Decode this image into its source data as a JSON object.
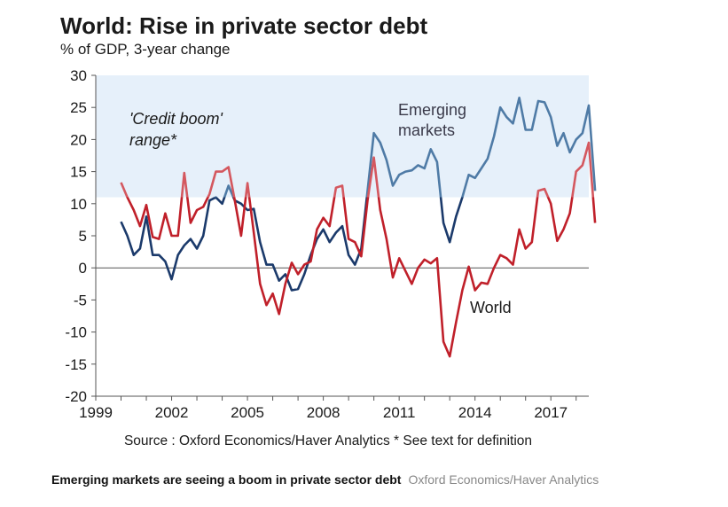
{
  "title": "World: Rise in private sector debt",
  "subtitle": "% of GDP, 3-year change",
  "source": "Source : Oxford Economics/Haver Analytics * See text for definition",
  "caption": {
    "text": "Emerging markets are seeing a boom in private sector debt",
    "credit": "Oxford Economics/Haver Analytics"
  },
  "chart_data": {
    "type": "line",
    "title": "World: Rise in private sector debt",
    "subtitle": "% of GDP, 3-year change",
    "xlim": [
      1999,
      2018.5
    ],
    "ylim": [
      -20,
      30
    ],
    "x_ticks": [
      "1999",
      "2002",
      "2005",
      "2008",
      "2011",
      "2014",
      "2017"
    ],
    "y_ticks": [
      "30",
      "25",
      "20",
      "15",
      "10",
      "5",
      "0",
      "-5",
      "-10",
      "-15",
      "-20"
    ],
    "grid": false,
    "shaded_band": {
      "label_line1": "'Credit boom'",
      "label_line2": "range*",
      "y_from": 11,
      "y_to": 30,
      "color": "#e6f0fa"
    },
    "series": [
      {
        "name": "Emerging markets",
        "label_line1": "Emerging",
        "label_line2": "markets",
        "color_in_band": "#4f7ba6",
        "color_outside_band": "#1b3a6b",
        "label_color": "#3a3a4a",
        "points": [
          [
            2000.0,
            7.2
          ],
          [
            2000.25,
            5.0
          ],
          [
            2000.5,
            2.0
          ],
          [
            2000.75,
            3.0
          ],
          [
            2001.0,
            8.0
          ],
          [
            2001.25,
            2.0
          ],
          [
            2001.5,
            2.0
          ],
          [
            2001.75,
            1.0
          ],
          [
            2002.0,
            -1.8
          ],
          [
            2002.25,
            2.0
          ],
          [
            2002.5,
            3.5
          ],
          [
            2002.75,
            4.5
          ],
          [
            2003.0,
            3.0
          ],
          [
            2003.25,
            5.0
          ],
          [
            2003.5,
            10.5
          ],
          [
            2003.75,
            11.0
          ],
          [
            2004.0,
            10.0
          ],
          [
            2004.25,
            12.8
          ],
          [
            2004.5,
            10.5
          ],
          [
            2004.75,
            10.0
          ],
          [
            2005.0,
            9.0
          ],
          [
            2005.25,
            9.2
          ],
          [
            2005.5,
            4.0
          ],
          [
            2005.75,
            0.5
          ],
          [
            2006.0,
            0.5
          ],
          [
            2006.25,
            -2.0
          ],
          [
            2006.5,
            -1.0
          ],
          [
            2006.75,
            -3.5
          ],
          [
            2007.0,
            -3.3
          ],
          [
            2007.25,
            -1.0
          ],
          [
            2007.5,
            2.0
          ],
          [
            2007.75,
            4.5
          ],
          [
            2008.0,
            6.0
          ],
          [
            2008.25,
            4.0
          ],
          [
            2008.5,
            5.5
          ],
          [
            2008.75,
            6.5
          ],
          [
            2009.0,
            2.0
          ],
          [
            2009.25,
            0.5
          ],
          [
            2009.5,
            3.0
          ],
          [
            2009.75,
            12.0
          ],
          [
            2010.0,
            21.0
          ],
          [
            2010.25,
            19.5
          ],
          [
            2010.5,
            16.8
          ],
          [
            2010.75,
            12.8
          ],
          [
            2011.0,
            14.5
          ],
          [
            2011.25,
            15.0
          ],
          [
            2011.5,
            15.2
          ],
          [
            2011.75,
            16.0
          ],
          [
            2012.0,
            15.5
          ],
          [
            2012.25,
            18.5
          ],
          [
            2012.5,
            16.5
          ],
          [
            2012.75,
            7.0
          ],
          [
            2013.0,
            4.0
          ],
          [
            2013.25,
            8.0
          ],
          [
            2013.5,
            11.0
          ],
          [
            2013.75,
            14.5
          ],
          [
            2014.0,
            14.0
          ],
          [
            2014.25,
            15.5
          ],
          [
            2014.5,
            17.0
          ],
          [
            2014.75,
            20.5
          ],
          [
            2015.0,
            25.0
          ],
          [
            2015.25,
            23.5
          ],
          [
            2015.5,
            22.5
          ],
          [
            2015.75,
            26.5
          ],
          [
            2016.0,
            21.5
          ],
          [
            2016.25,
            21.5
          ],
          [
            2016.5,
            26.0
          ],
          [
            2016.75,
            25.8
          ],
          [
            2017.0,
            23.5
          ],
          [
            2017.25,
            19.0
          ],
          [
            2017.5,
            21.0
          ],
          [
            2017.75,
            18.0
          ],
          [
            2018.0,
            20.0
          ],
          [
            2018.25,
            21.0
          ],
          [
            2018.5,
            25.3
          ],
          [
            2018.75,
            12.0
          ]
        ]
      },
      {
        "name": "World",
        "label_line1": "World",
        "color_in_band": "#d4585f",
        "color_outside_band": "#c0202a",
        "label_color": "#1a1a1a",
        "points": [
          [
            2000.0,
            13.3
          ],
          [
            2000.25,
            11.0
          ],
          [
            2000.5,
            9.0
          ],
          [
            2000.75,
            6.5
          ],
          [
            2001.0,
            9.8
          ],
          [
            2001.25,
            4.8
          ],
          [
            2001.5,
            4.5
          ],
          [
            2001.75,
            8.5
          ],
          [
            2002.0,
            5.0
          ],
          [
            2002.25,
            5.0
          ],
          [
            2002.5,
            14.8
          ],
          [
            2002.75,
            7.0
          ],
          [
            2003.0,
            9.0
          ],
          [
            2003.25,
            9.5
          ],
          [
            2003.5,
            11.5
          ],
          [
            2003.75,
            15.0
          ],
          [
            2004.0,
            15.0
          ],
          [
            2004.25,
            15.7
          ],
          [
            2004.5,
            10.5
          ],
          [
            2004.75,
            5.0
          ],
          [
            2005.0,
            13.2
          ],
          [
            2005.25,
            5.5
          ],
          [
            2005.5,
            -2.5
          ],
          [
            2005.75,
            -5.8
          ],
          [
            2006.0,
            -4.0
          ],
          [
            2006.25,
            -7.2
          ],
          [
            2006.5,
            -2.5
          ],
          [
            2006.75,
            0.8
          ],
          [
            2007.0,
            -1.0
          ],
          [
            2007.25,
            0.5
          ],
          [
            2007.5,
            1.0
          ],
          [
            2007.75,
            6.0
          ],
          [
            2008.0,
            7.8
          ],
          [
            2008.25,
            6.5
          ],
          [
            2008.5,
            12.5
          ],
          [
            2008.75,
            12.8
          ],
          [
            2009.0,
            4.5
          ],
          [
            2009.25,
            4.0
          ],
          [
            2009.5,
            1.8
          ],
          [
            2009.75,
            10.5
          ],
          [
            2010.0,
            17.2
          ],
          [
            2010.25,
            9.0
          ],
          [
            2010.5,
            4.5
          ],
          [
            2010.75,
            -1.5
          ],
          [
            2011.0,
            1.5
          ],
          [
            2011.25,
            -0.5
          ],
          [
            2011.5,
            -2.5
          ],
          [
            2011.75,
            0.0
          ],
          [
            2012.0,
            1.3
          ],
          [
            2012.25,
            0.7
          ],
          [
            2012.5,
            1.5
          ],
          [
            2012.75,
            -11.5
          ],
          [
            2013.0,
            -13.8
          ],
          [
            2013.25,
            -8.5
          ],
          [
            2013.5,
            -3.5
          ],
          [
            2013.75,
            0.2
          ],
          [
            2014.0,
            -3.5
          ],
          [
            2014.25,
            -2.3
          ],
          [
            2014.5,
            -2.5
          ],
          [
            2014.75,
            0.0
          ],
          [
            2015.0,
            2.0
          ],
          [
            2015.25,
            1.5
          ],
          [
            2015.5,
            0.5
          ],
          [
            2015.75,
            6.0
          ],
          [
            2016.0,
            3.0
          ],
          [
            2016.25,
            4.0
          ],
          [
            2016.5,
            12.0
          ],
          [
            2016.75,
            12.3
          ],
          [
            2017.0,
            10.0
          ],
          [
            2017.25,
            4.2
          ],
          [
            2017.5,
            6.0
          ],
          [
            2017.75,
            8.5
          ],
          [
            2018.0,
            15.0
          ],
          [
            2018.25,
            16.0
          ],
          [
            2018.5,
            19.5
          ],
          [
            2018.75,
            7.0
          ]
        ]
      }
    ]
  }
}
